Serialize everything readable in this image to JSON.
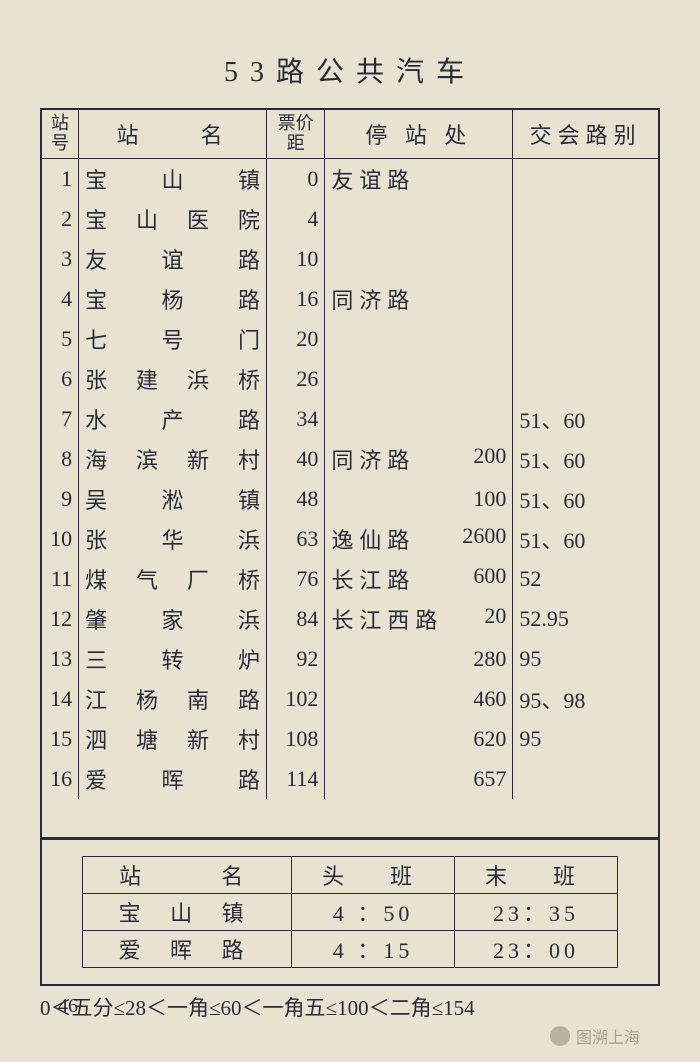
{
  "title": "53路公共汽车",
  "headers": {
    "station_no": "站号",
    "station_name": "站　　名",
    "fare_dist": "票价距",
    "stop_loc": "停 站 处",
    "routes": "交会路别"
  },
  "rows": [
    {
      "no": "1",
      "name": "宝山镇",
      "fare": "0",
      "stop_road": "友谊路",
      "stop_num": "",
      "routes": ""
    },
    {
      "no": "2",
      "name": "宝山医院",
      "fare": "4",
      "stop_road": "",
      "stop_num": "",
      "routes": ""
    },
    {
      "no": "3",
      "name": "友谊路",
      "fare": "10",
      "stop_road": "",
      "stop_num": "",
      "routes": ""
    },
    {
      "no": "4",
      "name": "宝杨路",
      "fare": "16",
      "stop_road": "同济路",
      "stop_num": "",
      "routes": ""
    },
    {
      "no": "5",
      "name": "七号门",
      "fare": "20",
      "stop_road": "",
      "stop_num": "",
      "routes": ""
    },
    {
      "no": "6",
      "name": "张建浜桥",
      "fare": "26",
      "stop_road": "",
      "stop_num": "",
      "routes": ""
    },
    {
      "no": "7",
      "name": "水产路",
      "fare": "34",
      "stop_road": "",
      "stop_num": "",
      "routes": "51、60"
    },
    {
      "no": "8",
      "name": "海滨新村",
      "fare": "40",
      "stop_road": "同济路",
      "stop_num": "200",
      "routes": "51、60"
    },
    {
      "no": "9",
      "name": "吴淞镇",
      "fare": "48",
      "stop_road": "",
      "stop_num": "100",
      "routes": "51、60"
    },
    {
      "no": "10",
      "name": "张华浜",
      "fare": "63",
      "stop_road": "逸仙路",
      "stop_num": "2600",
      "routes": "51、60"
    },
    {
      "no": "11",
      "name": "煤气厂桥",
      "fare": "76",
      "stop_road": "长江路",
      "stop_num": "600",
      "routes": "52"
    },
    {
      "no": "12",
      "name": "肇家浜",
      "fare": "84",
      "stop_road": "长江西路",
      "stop_num": "20",
      "routes": "52.95"
    },
    {
      "no": "13",
      "name": "三转炉",
      "fare": "92",
      "stop_road": "",
      "stop_num": "280",
      "routes": "95"
    },
    {
      "no": "14",
      "name": "江杨南路",
      "fare": "102",
      "stop_road": "",
      "stop_num": "460",
      "routes": "95、98"
    },
    {
      "no": "15",
      "name": "泗塘新村",
      "fare": "108",
      "stop_road": "",
      "stop_num": "620",
      "routes": "95"
    },
    {
      "no": "16",
      "name": "爱晖路",
      "fare": "114",
      "stop_road": "",
      "stop_num": "657",
      "routes": ""
    }
  ],
  "schedule": {
    "headers": {
      "name": "站　　名",
      "first": "头　班",
      "last": "末　班"
    },
    "rows": [
      {
        "name": "宝 山 镇",
        "first": "4 ：50",
        "last": "23：35"
      },
      {
        "name": "爱 晖 路",
        "first": "4 ：15",
        "last": "23：00"
      }
    ]
  },
  "fare_line": "0＜五分≤28＜一角≤60＜一角五≤100＜二角≤154",
  "page_no": "46",
  "watermark": "图溯上海"
}
